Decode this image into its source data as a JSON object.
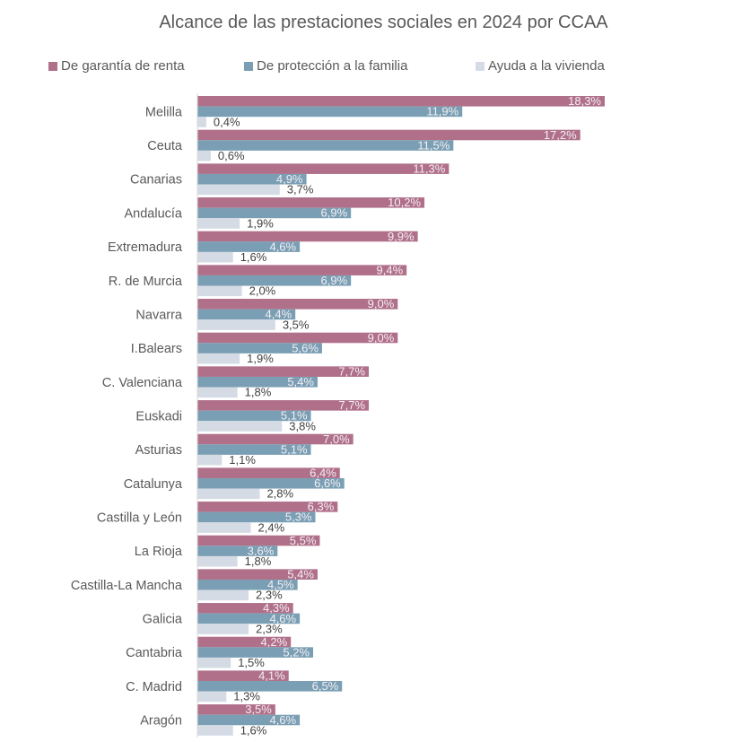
{
  "chart_data": {
    "type": "bar",
    "orientation": "horizontal",
    "title": "Alcance de las prestaciones sociales en 2024 por CCAA",
    "xlabel": "",
    "ylabel": "",
    "legend_position": "top",
    "grid": false,
    "categories": [
      "Melilla",
      "Ceuta",
      "Canarias",
      "Andalucía",
      "Extremadura",
      "R. de Murcia",
      "Navarra",
      "I.Balears",
      "C. Valenciana",
      "Euskadi",
      "Asturias",
      "Catalunya",
      "Castilla y León",
      "La Rioja",
      "Castilla-La Mancha",
      "Galicia",
      "Cantabria",
      "C. Madrid",
      "Aragón"
    ],
    "series": [
      {
        "name": "De garantía de renta",
        "color": "#b0708a",
        "values": [
          18.3,
          17.2,
          11.3,
          10.2,
          9.9,
          9.4,
          9.0,
          9.0,
          7.7,
          7.7,
          7.0,
          6.4,
          6.3,
          5.5,
          5.4,
          4.3,
          4.2,
          4.1,
          3.5
        ],
        "labels": [
          "18,3%",
          "17,2%",
          "11,3%",
          "10,2%",
          "9,9%",
          "9,4%",
          "9,0%",
          "9,0%",
          "7,7%",
          "7,7%",
          "7,0%",
          "6,4%",
          "6,3%",
          "5,5%",
          "5,4%",
          "4,3%",
          "4,2%",
          "4,1%",
          "3,5%"
        ]
      },
      {
        "name": "De protección a la familia",
        "color": "#7a9fb4",
        "values": [
          11.9,
          11.5,
          4.9,
          6.9,
          4.6,
          6.9,
          4.4,
          5.6,
          5.4,
          5.1,
          5.1,
          6.6,
          5.3,
          3.6,
          4.5,
          4.6,
          5.2,
          6.5,
          4.6
        ],
        "labels": [
          "11,9%",
          "11,5%",
          "4,9%",
          "6,9%",
          "4,6%",
          "6,9%",
          "4,4%",
          "5,6%",
          "5,4%",
          "5,1%",
          "5,1%",
          "6,6%",
          "5,3%",
          "3,6%",
          "4,5%",
          "4,6%",
          "5,2%",
          "6,5%",
          "4,6%"
        ]
      },
      {
        "name": "Ayuda a la vivienda",
        "color": "#d5dbe4",
        "values": [
          0.4,
          0.6,
          3.7,
          1.9,
          1.6,
          2.0,
          3.5,
          1.9,
          1.8,
          3.8,
          1.1,
          2.8,
          2.4,
          1.8,
          2.3,
          2.3,
          1.5,
          1.3,
          1.6
        ],
        "labels": [
          "0,4%",
          "0,6%",
          "3,7%",
          "1,9%",
          "1,6%",
          "2,0%",
          "3,5%",
          "1,9%",
          "1,8%",
          "3,8%",
          "1,1%",
          "2,8%",
          "2,4%",
          "1,8%",
          "2,3%",
          "2,3%",
          "1,5%",
          "1,3%",
          "1,6%"
        ]
      }
    ],
    "xlim": [
      0,
      20
    ]
  }
}
